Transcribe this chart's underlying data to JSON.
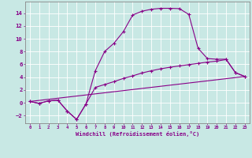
{
  "xlabel": "Windchill (Refroidissement éolien,°C)",
  "bg_color": "#c8e8e4",
  "line_color": "#880088",
  "grid_color": "#aacccc",
  "xlim": [
    -0.5,
    23.5
  ],
  "ylim": [
    -3.2,
    15.8
  ],
  "xticks": [
    0,
    1,
    2,
    3,
    4,
    5,
    6,
    7,
    8,
    9,
    10,
    11,
    12,
    13,
    14,
    15,
    16,
    17,
    18,
    19,
    20,
    21,
    22,
    23
  ],
  "yticks": [
    -2,
    0,
    2,
    4,
    6,
    8,
    10,
    12,
    14
  ],
  "curve1_x": [
    0,
    1,
    2,
    3,
    4,
    5,
    6,
    7,
    8,
    9,
    10,
    11,
    12,
    13,
    14,
    15,
    16,
    17,
    18,
    19,
    20,
    21,
    22,
    23
  ],
  "curve1_y": [
    0.2,
    -0.1,
    0.3,
    0.4,
    -1.3,
    -2.6,
    -0.2,
    5.0,
    8.0,
    9.3,
    11.1,
    13.7,
    14.3,
    14.6,
    14.75,
    14.75,
    14.7,
    13.8,
    8.5,
    6.9,
    6.8,
    6.8,
    4.7,
    4.1
  ],
  "curve2_x": [
    0,
    1,
    2,
    3,
    4,
    5,
    6,
    7,
    8,
    9,
    10,
    11,
    12,
    13,
    14,
    15,
    16,
    17,
    18,
    19,
    20,
    21,
    22,
    23
  ],
  "curve2_y": [
    0.2,
    -0.1,
    0.3,
    0.4,
    -1.3,
    -2.6,
    -0.2,
    2.4,
    2.85,
    3.3,
    3.8,
    4.2,
    4.65,
    5.0,
    5.3,
    5.55,
    5.75,
    5.95,
    6.15,
    6.35,
    6.5,
    6.75,
    4.7,
    4.1
  ],
  "curve3_x": [
    0,
    23
  ],
  "curve3_y": [
    0.2,
    4.1
  ]
}
